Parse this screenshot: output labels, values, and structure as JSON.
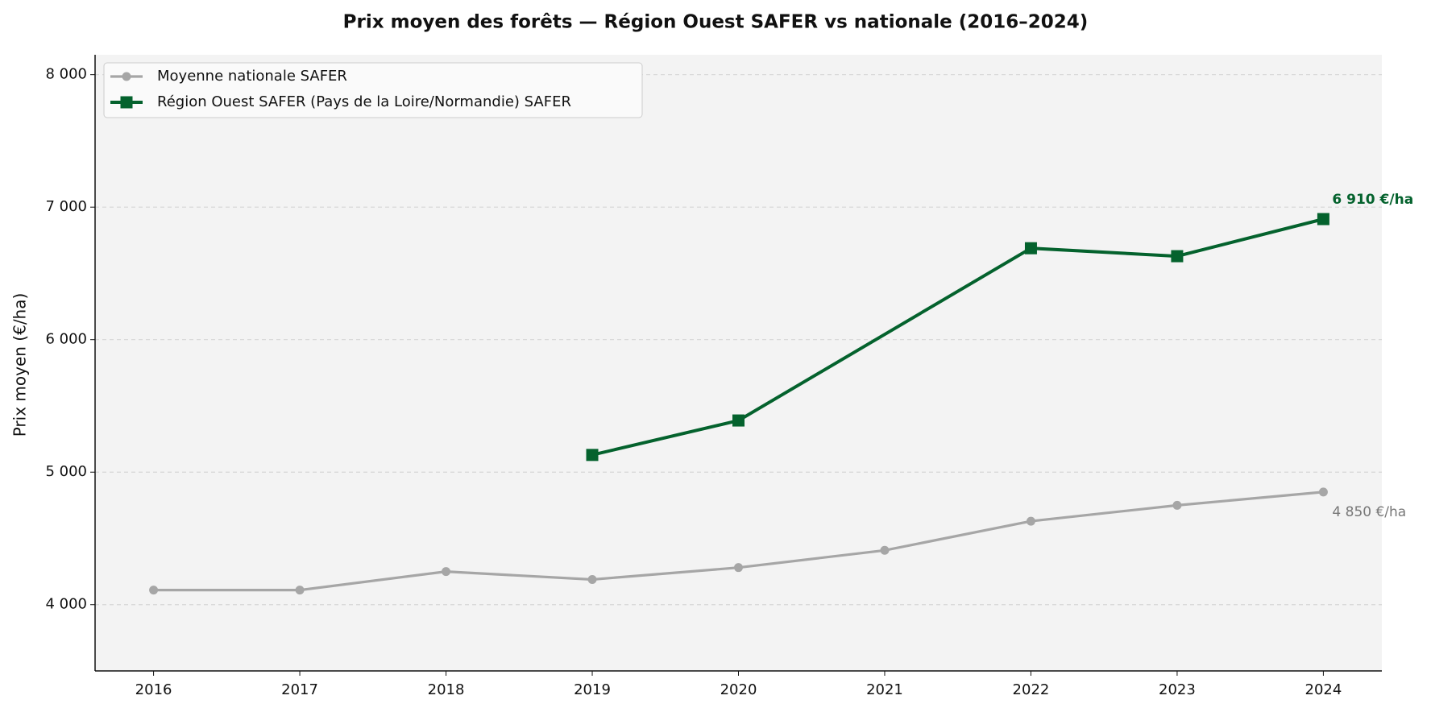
{
  "chart_data": {
    "type": "line",
    "title": "Prix moyen des forêts — Région Ouest SAFER vs nationale (2016–2024)",
    "y_label": "Prix moyen (€/ha)",
    "xlim": [
      2015.6,
      2024.4
    ],
    "xticks": [
      2016,
      2017,
      2018,
      2019,
      2020,
      2021,
      2022,
      2023,
      2024
    ],
    "ylim": [
      3500,
      8150
    ],
    "yticks": [
      {
        "value": 4000,
        "label": "4 000"
      },
      {
        "value": 5000,
        "label": "5 000"
      },
      {
        "value": 6000,
        "label": "6 000"
      },
      {
        "value": 7000,
        "label": "7 000"
      },
      {
        "value": 8000,
        "label": "8 000"
      }
    ],
    "grid": true,
    "legend": "upper left",
    "series": [
      {
        "name": "Moyenne nationale SAFER",
        "color": "#a6a6a6",
        "marker": "circle",
        "x": [
          2016,
          2017,
          2018,
          2019,
          2020,
          2021,
          2022,
          2023,
          2024
        ],
        "values": [
          4110,
          4110,
          4250,
          4190,
          4280,
          4410,
          4630,
          4750,
          4850
        ],
        "value_labels": [
          null,
          null,
          null,
          null,
          null,
          null,
          null,
          null,
          "4 850 €/ha"
        ]
      },
      {
        "name": "Région Ouest SAFER (Pays de la Loire/Normandie) SAFER",
        "color": "#04622d",
        "marker": "square",
        "x": [
          2019,
          2020,
          2022,
          2023,
          2024
        ],
        "values": [
          5130,
          5390,
          6690,
          6630,
          6910
        ],
        "value_labels": [
          null,
          null,
          null,
          null,
          "6 910 €/ha"
        ]
      }
    ]
  }
}
